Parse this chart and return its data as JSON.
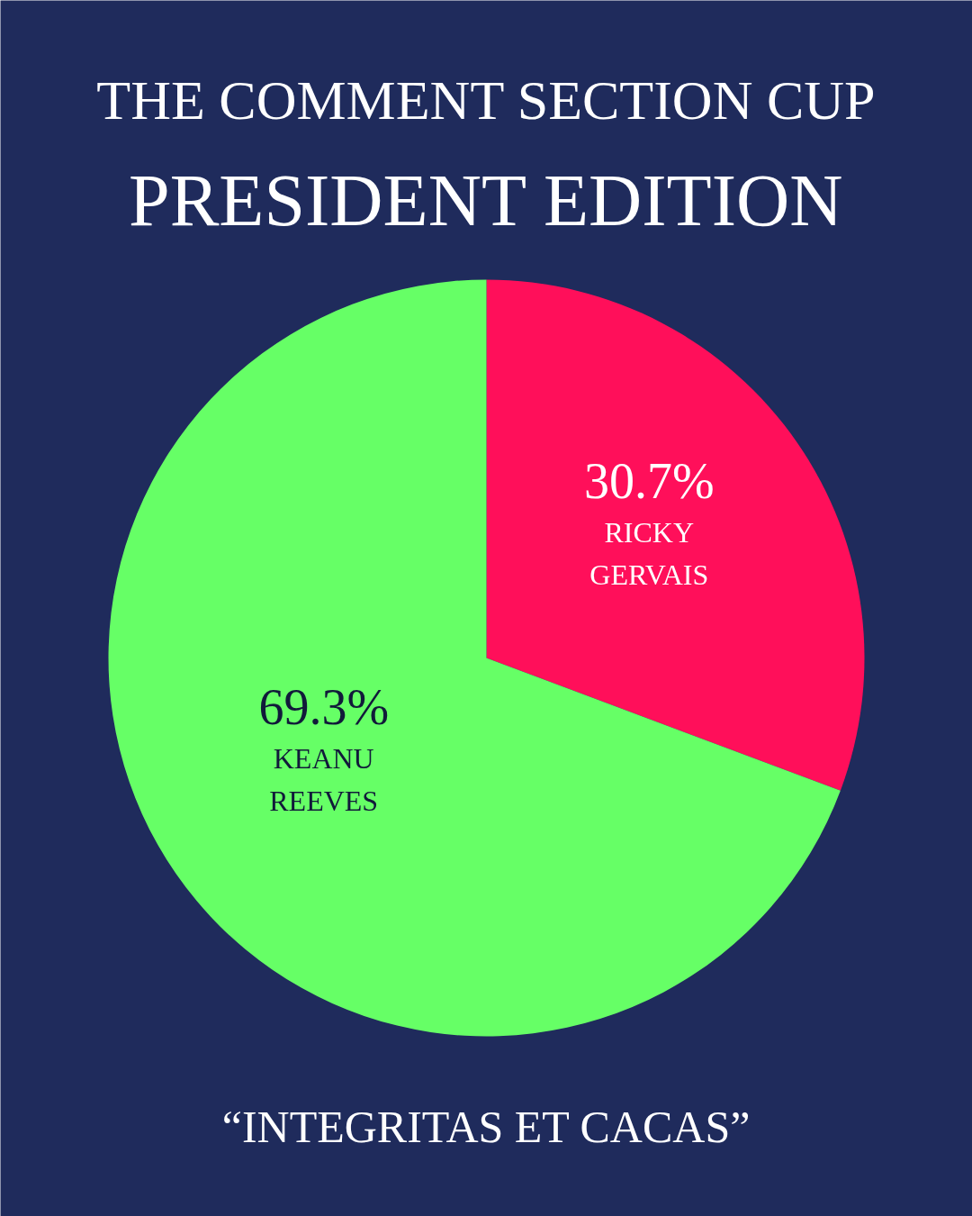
{
  "chart_data": {
    "type": "pie",
    "title": "THE COMMENT SECTION CUP",
    "subtitle": "PRESIDENT EDITION",
    "categories": [
      "RICKY GERVAIS",
      "KEANU REEVES"
    ],
    "values": [
      30.7,
      69.3
    ],
    "colors": [
      "#ff0f5a",
      "#66ff66"
    ],
    "value_labels": [
      "30.7%",
      "69.3%"
    ],
    "annotations": [
      "“INTEGRITAS ET CACAS”"
    ]
  }
}
